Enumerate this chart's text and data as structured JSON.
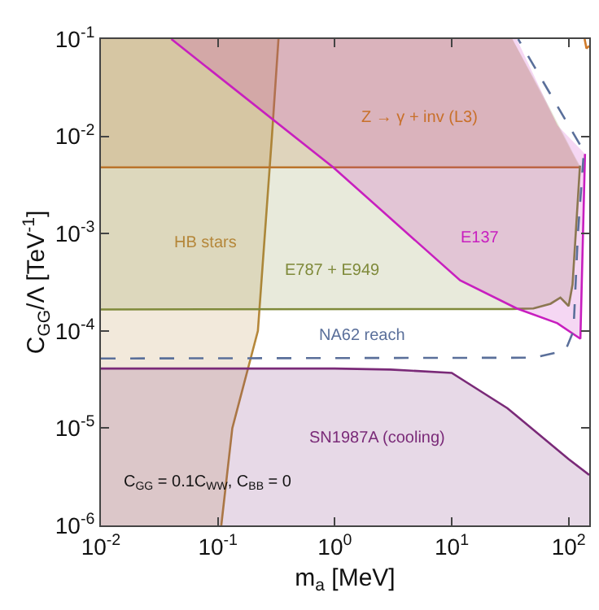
{
  "chart_data": {
    "type": "line",
    "xlabel": "m$_{a}$ [MeV]",
    "ylabel": "C$_{GG}$/Λ [TeV$^{-1}$]",
    "log": "xy",
    "grid": false,
    "xlim": [
      0.01,
      150
    ],
    "ylim": [
      1e-06,
      0.1
    ],
    "xticks": [
      {
        "value": 0.01,
        "label": "10$^{-2}$"
      },
      {
        "value": 0.1,
        "label": "10$^{-1}$"
      },
      {
        "value": 1,
        "label": "10$^{0}$"
      },
      {
        "value": 10,
        "label": "10$^{1}$"
      },
      {
        "value": 100,
        "label": "10$^{2}$"
      }
    ],
    "yticks": [
      {
        "value": 1e-06,
        "label": "10$^{-6}$"
      },
      {
        "value": 1e-05,
        "label": "10$^{-5}$"
      },
      {
        "value": 0.0001,
        "label": "10$^{-4}$"
      },
      {
        "value": 0.001,
        "label": "10$^{-3}$"
      },
      {
        "value": 0.01,
        "label": "10$^{-2}$"
      },
      {
        "value": 0.1,
        "label": "10$^{-1}$"
      }
    ],
    "series": [
      {
        "name": "HB stars",
        "color": "#b5873a",
        "x": [
          0.01,
          0.107,
          0.133,
          0.22,
          0.29,
          0.33
        ],
        "values": [
          null,
          1e-06,
          1e-05,
          0.0001,
          0.01,
          0.1
        ],
        "lower": [
          1e-06,
          1e-06,
          1e-05,
          0.0001,
          0.01,
          0.1
        ],
        "upper": [
          0.1,
          0.1,
          0.1,
          0.1,
          0.1,
          0.1
        ]
      },
      {
        "name": "Z → γ + inv (L3)",
        "color": "#c8702a",
        "x": [
          0.01,
          33,
          125
        ],
        "values": [
          0.0048,
          0.0048,
          0.0048
        ],
        "lower": [
          0.0048,
          0.0048,
          0.0048
        ],
        "upper": [
          0.1,
          0.1,
          0.0048
        ]
      },
      {
        "name": "E787 + E949",
        "color": "#7f8a3a",
        "x": [
          0.01,
          33,
          50,
          70,
          85,
          100,
          108,
          115,
          125
        ],
        "values": [
          0.000166,
          0.000168,
          0.00017,
          0.00019,
          0.00022,
          0.00018,
          0.0003,
          0.001,
          0.005
        ],
        "lower": [
          0.000166,
          0.000168,
          0.00017,
          0.00019,
          0.00022,
          0.00018,
          0.0003,
          0.001,
          0.005
        ],
        "upper": [
          0.1,
          0.1,
          0.04,
          0.019,
          0.012,
          0.0083,
          0.0069,
          0.006,
          0.005
        ]
      },
      {
        "name": "E137",
        "color": "#c81fbf",
        "x": [
          0.04,
          0.97,
          11.8,
          36,
          80,
          126,
          138
        ],
        "values": [
          0.1,
          0.0048,
          0.00033,
          0.00017,
          0.00012,
          8.3e-05,
          0.0066
        ],
        "lower": [
          0.1,
          0.0048,
          0.00033,
          0.00017,
          0.00012,
          8.3e-05,
          0.0066
        ],
        "upper": [
          0.1,
          0.1,
          0.1,
          0.1,
          0.013,
          0.0074,
          0.0066
        ]
      },
      {
        "name": "NA62 reach",
        "color": "#5a6f9a",
        "line_style": "dashed",
        "x": [
          0.01,
          50,
          80,
          95,
          110,
          120,
          135,
          37
        ],
        "values": [
          5.2e-05,
          5.3e-05,
          6e-05,
          6.5e-05,
          0.0001,
          0.001,
          0.007,
          0.1
        ]
      },
      {
        "name": "SN1987A (cooling)",
        "color": "#7a2a78",
        "x": [
          0.01,
          1,
          3,
          10,
          30,
          100,
          150
        ],
        "values": [
          4.1e-05,
          4.1e-05,
          4e-05,
          3.7e-05,
          1.6e-05,
          4.8e-06,
          3.3e-06
        ],
        "lower": [
          1e-06,
          1e-06,
          1e-06,
          1e-06,
          1e-06,
          1e-06,
          1e-06
        ],
        "upper": [
          4.1e-05,
          4.1e-05,
          4e-05,
          3.7e-05,
          1.6e-05,
          4.8e-06,
          3.3e-06
        ]
      },
      {
        "color": "#d07a2a",
        "x": [
          137,
          142,
          150
        ],
        "values": [
          0.1,
          0.08,
          0.085
        ]
      }
    ],
    "annotations": [
      "C$_{GG}$ = 0.1C$_{WW}$, C$_{BB}$ = 0"
    ]
  }
}
